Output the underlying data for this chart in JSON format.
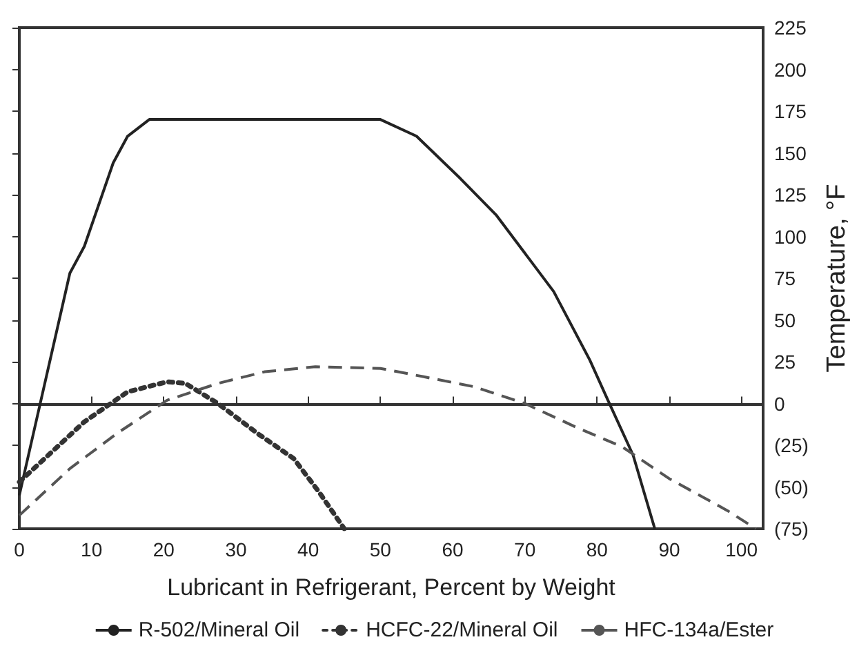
{
  "chart_data": {
    "type": "line",
    "xlabel": "Lubricant in Refrigerant, Percent by Weight",
    "ylabel": "Temperature, °F",
    "xlim": [
      0,
      103
    ],
    "xticks": [
      0,
      10,
      20,
      30,
      40,
      50,
      60,
      70,
      80,
      90,
      100
    ],
    "ylim": [
      -75,
      225
    ],
    "yticks": [
      {
        "value": -75,
        "label": "(75)"
      },
      {
        "value": -50,
        "label": "(50)"
      },
      {
        "value": -25,
        "label": "(25)"
      },
      0,
      25,
      50,
      75,
      100,
      125,
      150,
      175,
      200,
      225
    ],
    "legend": "bottom",
    "marker": "none",
    "series": [
      {
        "name": "R-502/Mineral Oil",
        "color": "#222222",
        "line_style": "solid",
        "x": [
          0,
          7,
          9,
          13,
          15,
          18,
          50,
          55,
          61,
          66,
          74,
          79,
          81.5,
          85,
          88
        ],
        "values": [
          -55,
          78,
          94,
          144,
          160,
          170,
          170,
          160,
          135,
          113,
          67,
          26,
          2,
          -31,
          -75
        ]
      },
      {
        "name": "HCFC-22/Mineral Oil",
        "color": "#333333",
        "line_style": "dotted",
        "x": [
          0,
          4,
          9,
          15,
          20.5,
          23,
          27.5,
          33,
          38,
          41.5,
          45
        ],
        "values": [
          -47,
          -31,
          -11,
          7,
          13,
          12,
          0,
          -18,
          -33,
          -53,
          -75
        ]
      },
      {
        "name": "HFC-134a/Ester",
        "color": "#555555",
        "line_style": "dashed",
        "x": [
          0,
          7,
          13.5,
          20.5,
          27.5,
          34,
          41,
          50,
          56,
          63,
          70,
          77,
          83.5,
          90,
          98,
          102
        ],
        "values": [
          -67,
          -39,
          -18,
          2,
          12,
          19,
          22,
          21,
          16,
          10,
          0,
          -14,
          -26,
          -45,
          -64,
          -75
        ]
      }
    ]
  }
}
